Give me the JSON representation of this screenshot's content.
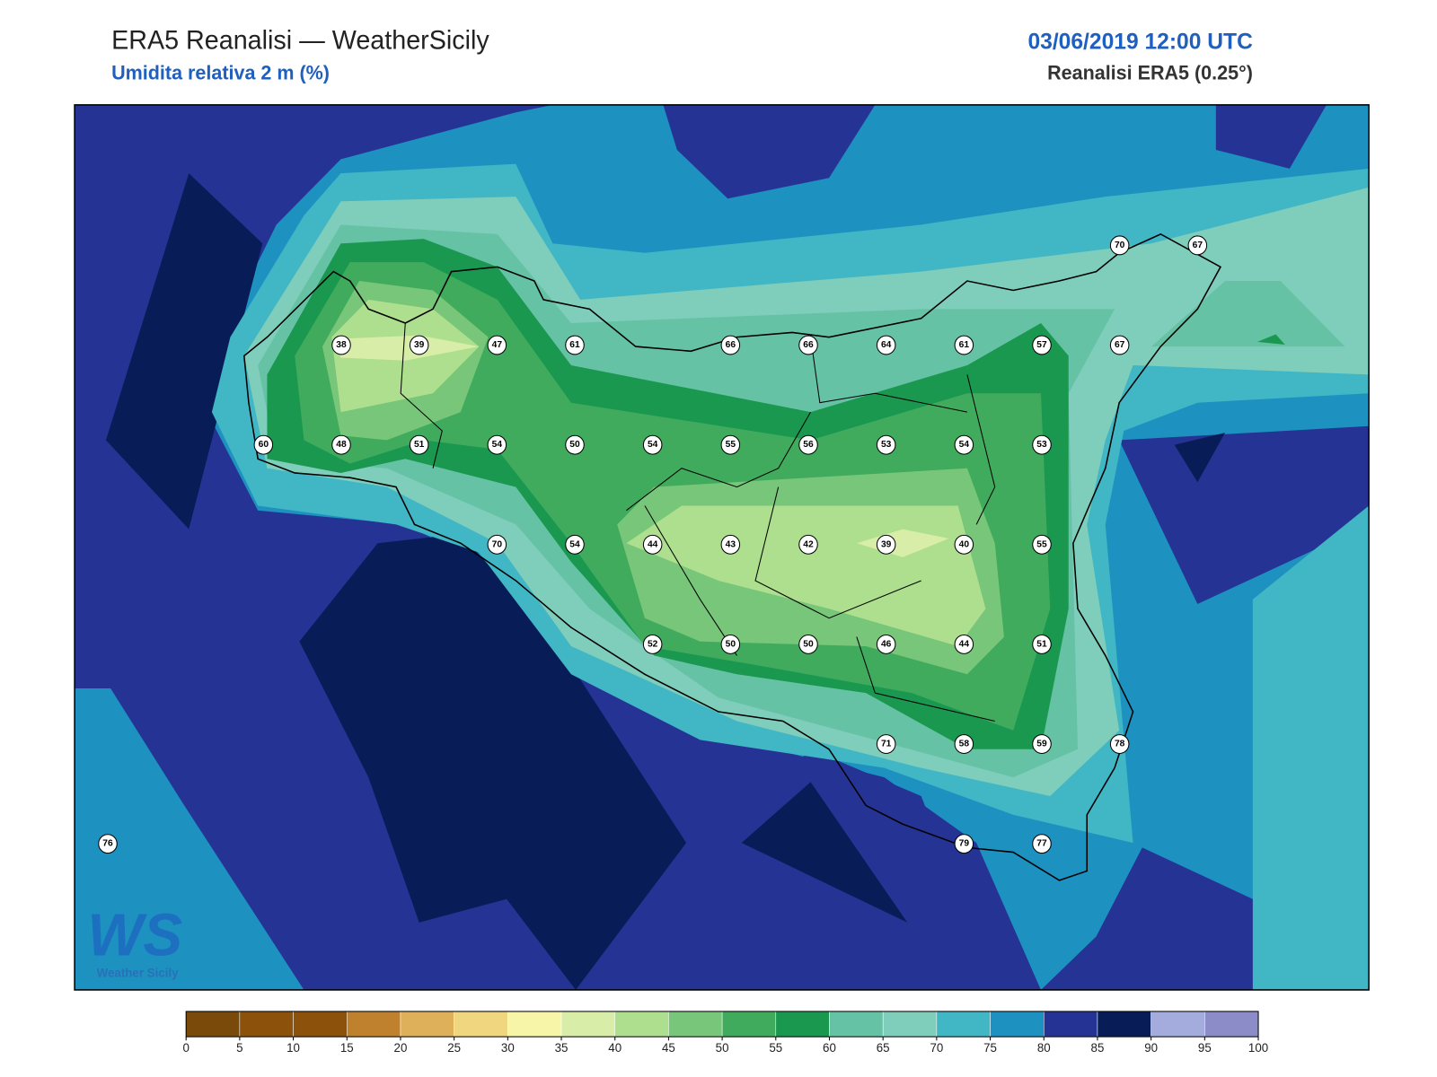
{
  "header": {
    "title": "ERA5 Reanalisi — WeatherSicily",
    "subtitle": "Umidita relativa 2 m (%)",
    "datetime": "03/06/2019 12:00 UTC",
    "source": "Reanalisi ERA5 (0.25°)"
  },
  "stations": [
    70,
    67,
    38,
    39,
    47,
    61,
    66,
    66,
    64,
    61,
    57,
    67,
    60,
    48,
    51,
    54,
    50,
    54,
    55,
    56,
    53,
    54,
    53,
    70,
    54,
    44,
    43,
    42,
    39,
    40,
    55,
    52,
    50,
    50,
    46,
    44,
    51,
    71,
    58,
    59,
    78,
    76,
    79,
    77
  ],
  "colorbar": {
    "ticks": [
      0,
      5,
      10,
      15,
      20,
      25,
      30,
      35,
      40,
      45,
      50,
      55,
      60,
      65,
      70,
      75,
      80,
      85,
      90,
      95,
      100
    ],
    "colors": [
      "#7a4a0a",
      "#8c510a",
      "#8c510a",
      "#bf812d",
      "#dfb05a",
      "#f0d67e",
      "#f6f5a8",
      "#d8eda7",
      "#addf8e",
      "#78c679",
      "#41ab5d",
      "#1a9850",
      "#66c2a4",
      "#7fcdbb",
      "#41b6c4",
      "#1d91c0",
      "#253494",
      "#081d58",
      "#a3acdc",
      "#8c8cc8"
    ]
  },
  "logo": {
    "mark": "WS",
    "text": "Weather Sicily"
  }
}
